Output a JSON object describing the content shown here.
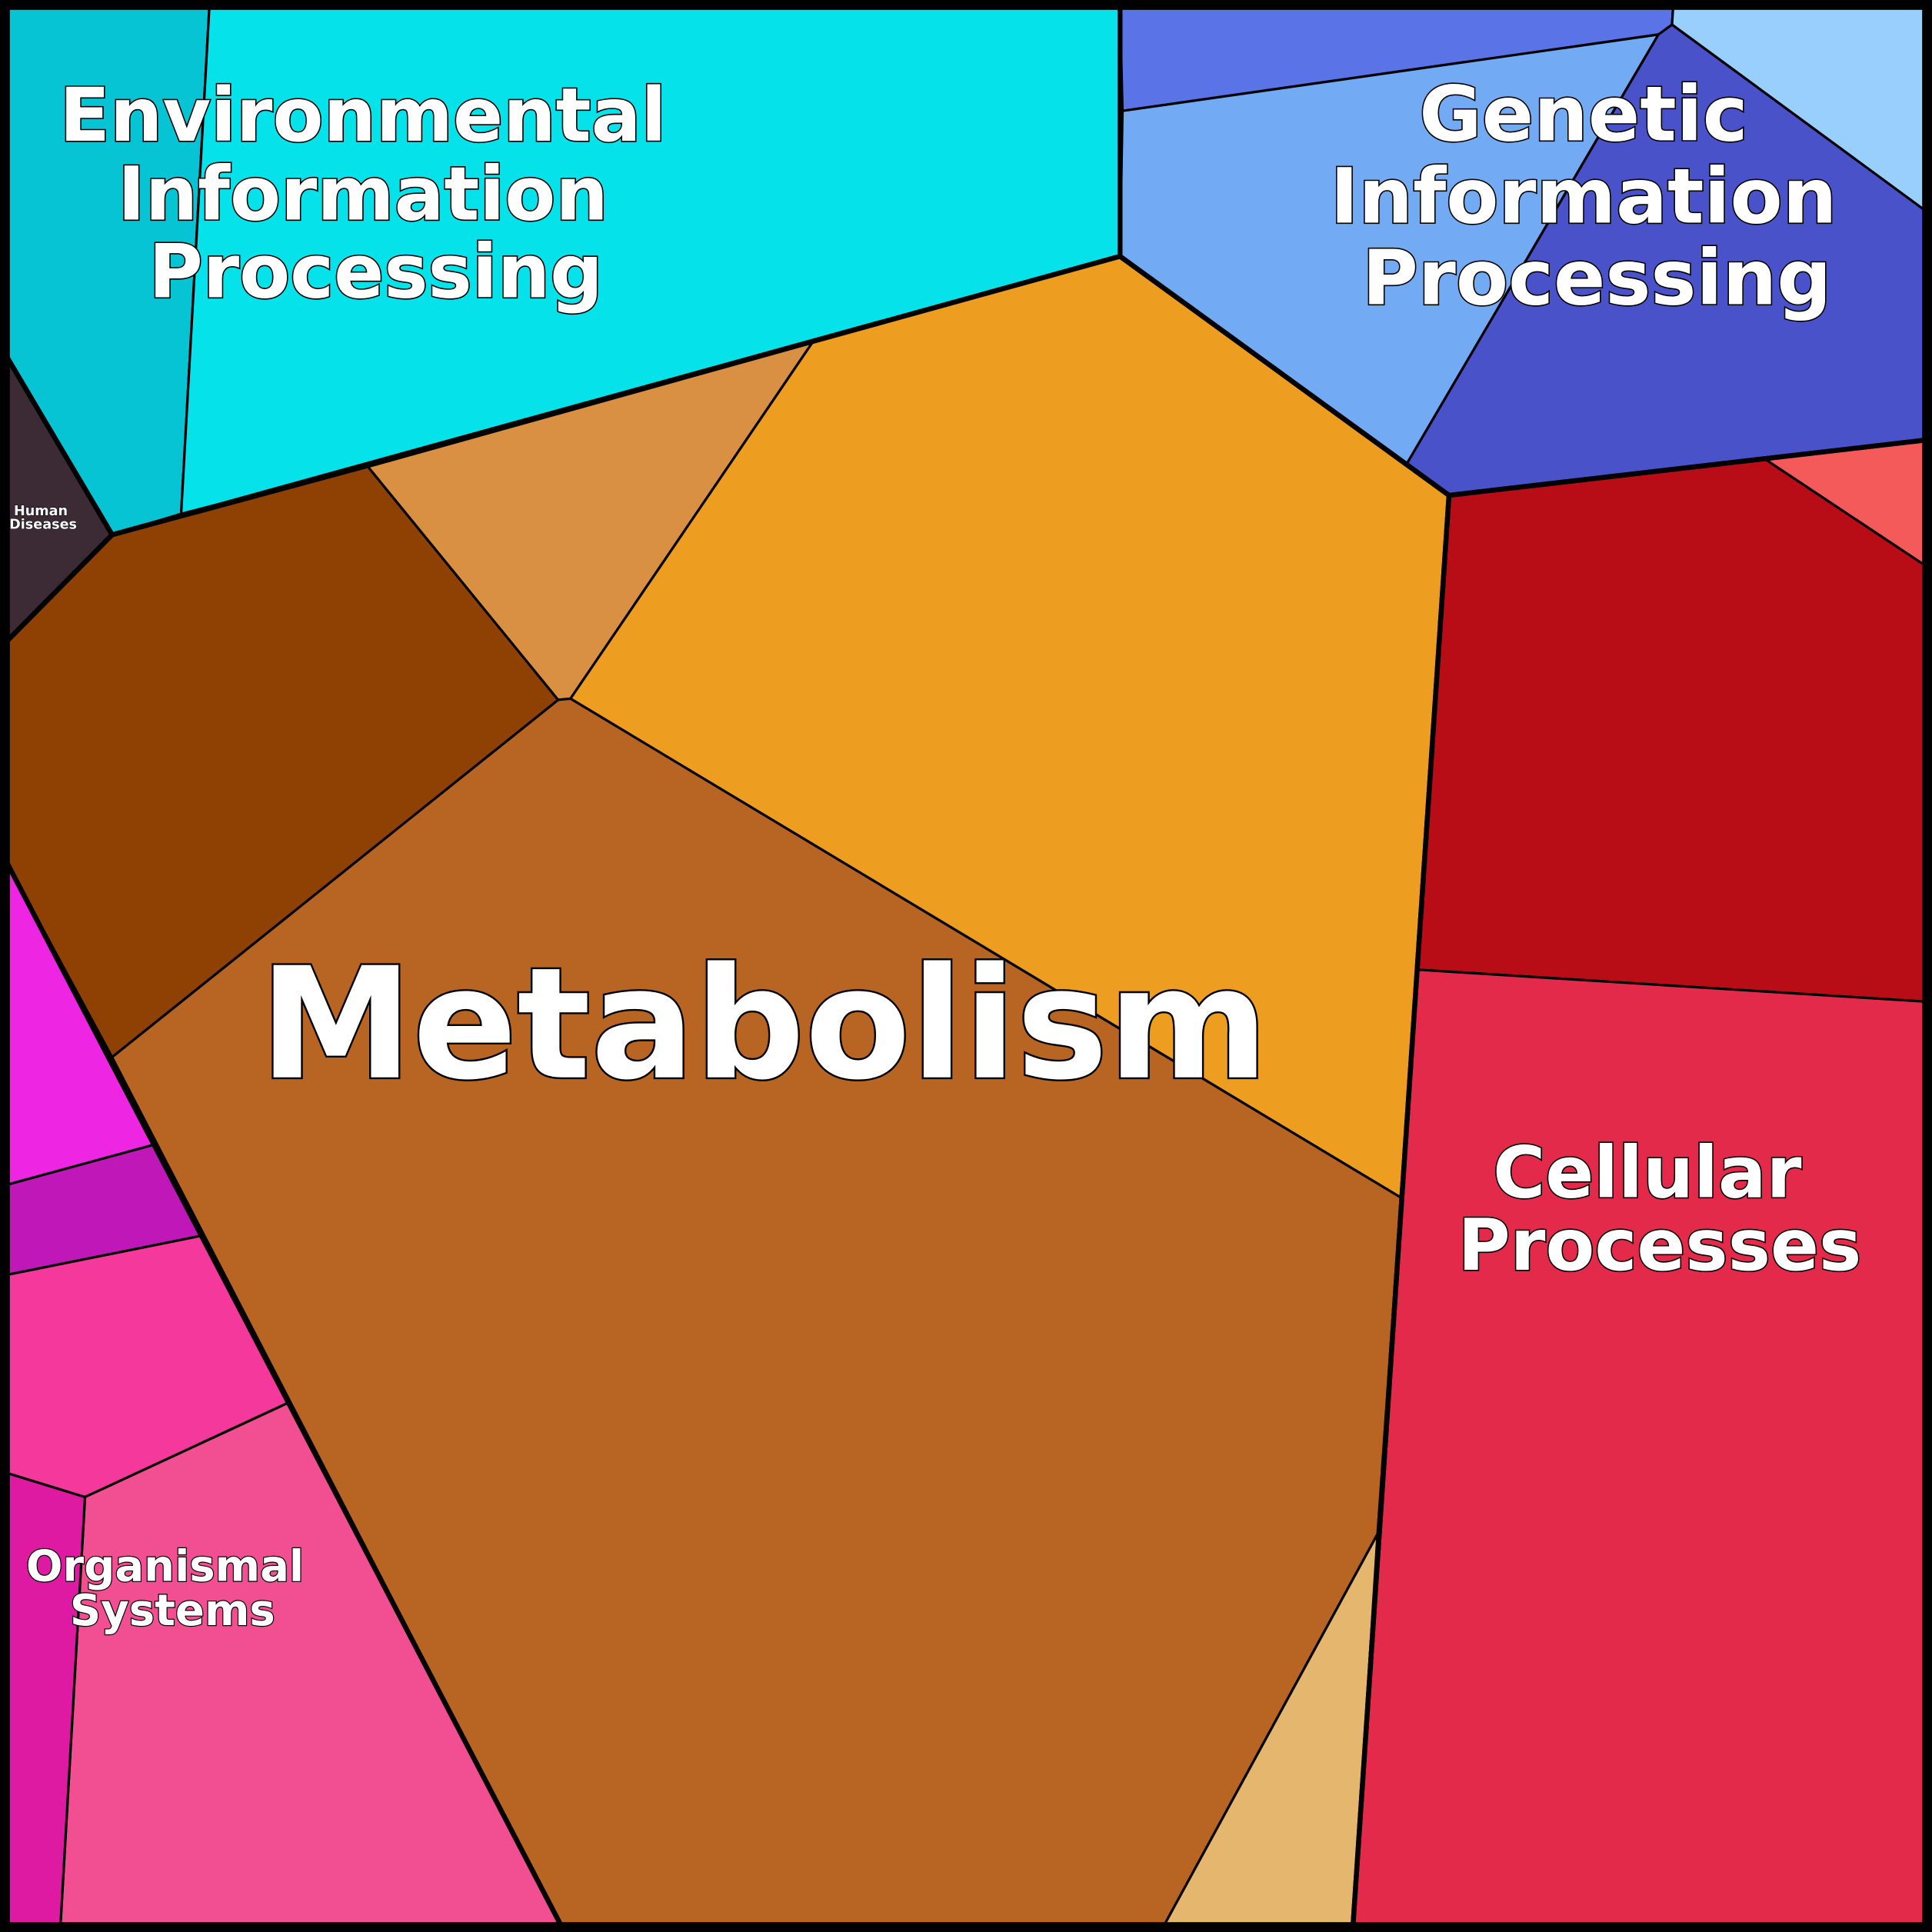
{
  "regions": [
    {
      "lines": [
        "Environmental",
        "Information",
        "Processing"
      ]
    },
    {
      "lines": [
        "Genetic",
        "Information",
        "Processing"
      ]
    },
    {
      "lines": [
        "Metabolism"
      ]
    },
    {
      "lines": [
        "Cellular",
        "Processes"
      ]
    },
    {
      "lines": [
        "Organismal",
        "Systems"
      ]
    },
    {
      "lines": [
        "Human",
        "Diseases"
      ]
    }
  ]
}
